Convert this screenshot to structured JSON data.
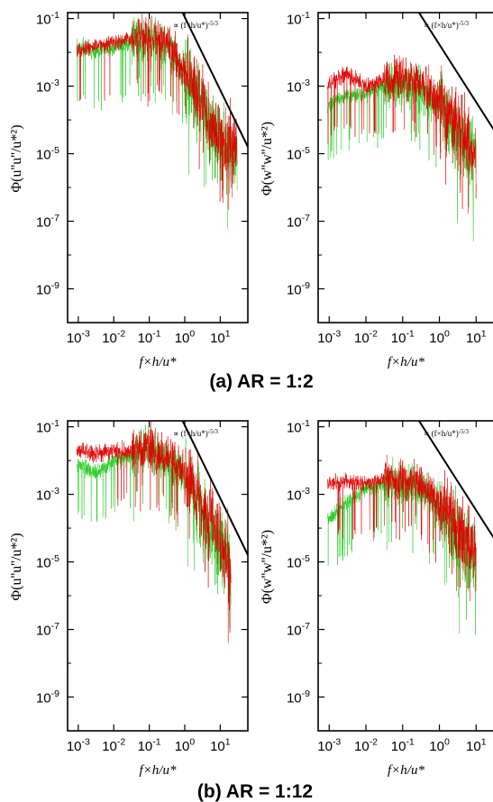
{
  "figure": {
    "caption_a": "(a) AR = 1:2",
    "caption_b": "(b) AR = 1:12"
  },
  "colors": {
    "series_1": "#e00000",
    "series_2": "#22cc22",
    "axis": "#000000"
  },
  "chart_data": [
    {
      "type": "line",
      "panel": "a-left",
      "xlabel": "f×h/u*",
      "ylabel": "Φ(u''u''/u*²)",
      "x_scale": "log",
      "y_scale": "log",
      "xlim": [
        0.0005,
        60
      ],
      "ylim": [
        1e-10,
        0.15
      ],
      "x_ticks": [
        "10-3",
        "10-2",
        "10-1",
        "100",
        "101"
      ],
      "y_ticks": [
        "10-1",
        "10-3",
        "10-5",
        "10-7",
        "10-9"
      ],
      "annotation": "∝ (f×h/u*)-5/3",
      "reference_line": {
        "x": [
          0.8,
          60
        ],
        "y": [
          0.18,
          1.6e-05
        ]
      },
      "series": [
        {
          "color": "red",
          "x": [
            0.001,
            0.003,
            0.01,
            0.03,
            0.1,
            0.3,
            1,
            3,
            10,
            30
          ],
          "y": [
            0.012,
            0.015,
            0.02,
            0.025,
            0.03,
            0.02,
            0.003,
            0.0003,
            3e-05,
            1e-05
          ]
        },
        {
          "color": "green",
          "x": [
            0.001,
            0.003,
            0.01,
            0.03,
            0.1,
            0.3,
            1,
            3,
            10,
            30
          ],
          "y": [
            0.015,
            0.01,
            0.015,
            0.02,
            0.025,
            0.018,
            0.002,
            0.0002,
            2e-05,
            8e-06
          ]
        }
      ]
    },
    {
      "type": "line",
      "panel": "a-right",
      "xlabel": "f×h/u*",
      "ylabel": "Φ(w''w''/u*²)",
      "x_scale": "log",
      "y_scale": "log",
      "xlim": [
        0.0005,
        60
      ],
      "ylim": [
        1e-10,
        0.15
      ],
      "x_ticks": [
        "10-3",
        "10-2",
        "10-1",
        "100",
        "101"
      ],
      "y_ticks": [
        "10-1",
        "10-3",
        "10-5",
        "10-7",
        "10-9"
      ],
      "annotation": "∝ (f×h/u*)-5/3",
      "reference_line": {
        "x": [
          0.25,
          60
        ],
        "y": [
          0.18,
          1.6e-05
        ]
      },
      "series": [
        {
          "color": "red",
          "x": [
            0.001,
            0.003,
            0.01,
            0.03,
            0.1,
            0.3,
            1,
            3,
            10
          ],
          "y": [
            0.0012,
            0.0025,
            0.001,
            0.0015,
            0.002,
            0.0012,
            0.0004,
            6e-05,
            1e-05
          ]
        },
        {
          "color": "green",
          "x": [
            0.001,
            0.003,
            0.01,
            0.03,
            0.1,
            0.3,
            1,
            3,
            10
          ],
          "y": [
            0.0003,
            0.0005,
            0.0006,
            0.001,
            0.0012,
            0.0008,
            0.0003,
            4e-05,
            8e-06
          ]
        }
      ]
    },
    {
      "type": "line",
      "panel": "b-left",
      "xlabel": "f×h/u*",
      "ylabel": "Φ(u''u''/u*²)",
      "x_scale": "log",
      "y_scale": "log",
      "xlim": [
        0.0005,
        60
      ],
      "ylim": [
        1e-10,
        0.15
      ],
      "x_ticks": [
        "10-3",
        "10-2",
        "10-1",
        "100",
        "101"
      ],
      "y_ticks": [
        "10-1",
        "10-3",
        "10-5",
        "10-7",
        "10-9"
      ],
      "annotation": "∝ (f×h/u*)-5/3",
      "reference_line": {
        "x": [
          0.8,
          60
        ],
        "y": [
          0.18,
          1.6e-05
        ]
      },
      "series": [
        {
          "color": "red",
          "x": [
            0.001,
            0.003,
            0.01,
            0.03,
            0.1,
            0.3,
            1,
            3,
            10,
            20
          ],
          "y": [
            0.02,
            0.015,
            0.02,
            0.02,
            0.025,
            0.015,
            0.004,
            0.0005,
            5e-05,
            1e-05
          ]
        },
        {
          "color": "green",
          "x": [
            0.001,
            0.003,
            0.01,
            0.03,
            0.1,
            0.3,
            1,
            3,
            10,
            20
          ],
          "y": [
            0.008,
            0.004,
            0.01,
            0.015,
            0.02,
            0.012,
            0.003,
            0.0003,
            3e-05,
            6e-06
          ]
        }
      ]
    },
    {
      "type": "line",
      "panel": "b-right",
      "xlabel": "f×h/u*",
      "ylabel": "Φ(w''w''/u*²)",
      "x_scale": "log",
      "y_scale": "log",
      "xlim": [
        0.0005,
        60
      ],
      "ylim": [
        1e-10,
        0.15
      ],
      "x_ticks": [
        "10-3",
        "10-2",
        "10-1",
        "100",
        "101"
      ],
      "y_ticks": [
        "10-1",
        "10-3",
        "10-5",
        "10-7",
        "10-9"
      ],
      "annotation": "∝ (f×h/u*)-5/3",
      "reference_line": {
        "x": [
          0.25,
          60
        ],
        "y": [
          0.18,
          1.6e-05
        ]
      },
      "series": [
        {
          "color": "red",
          "x": [
            0.001,
            0.003,
            0.01,
            0.03,
            0.1,
            0.3,
            1,
            3,
            10
          ],
          "y": [
            0.002,
            0.0025,
            0.002,
            0.003,
            0.003,
            0.002,
            0.0006,
            0.0001,
            2e-05
          ]
        },
        {
          "color": "green",
          "x": [
            0.001,
            0.003,
            0.01,
            0.03,
            0.1,
            0.3,
            1,
            3,
            10
          ],
          "y": [
            0.0002,
            0.0006,
            0.0015,
            0.002,
            0.002,
            0.0015,
            0.0004,
            6e-05,
            1e-05
          ]
        }
      ]
    }
  ]
}
